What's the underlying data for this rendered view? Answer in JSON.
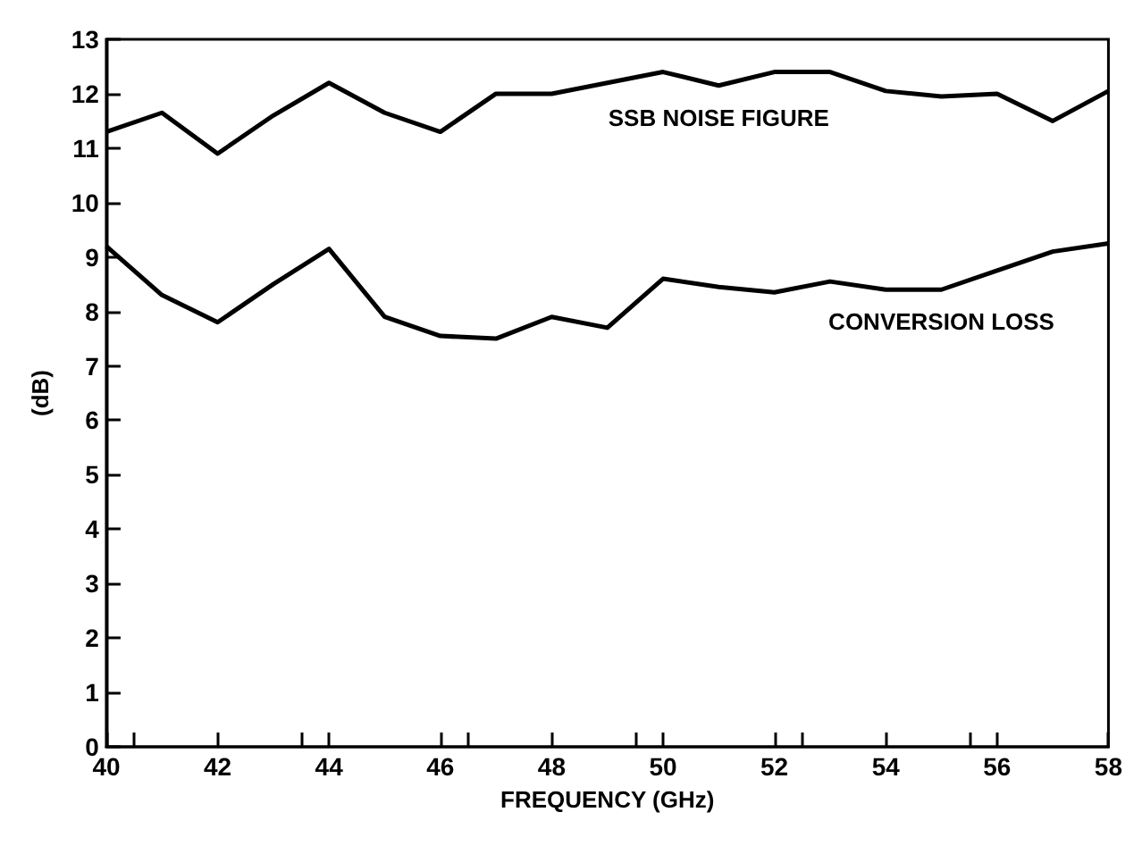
{
  "chart_data": {
    "type": "line",
    "xlabel": "FREQUENCY (GHz)",
    "ylabel": "(dB)",
    "x": [
      40,
      41,
      42,
      43,
      44,
      45,
      46,
      47,
      48,
      49,
      50,
      51,
      52,
      53,
      54,
      55,
      56,
      57,
      58
    ],
    "series": [
      {
        "name": "SSB NOISE FIGURE",
        "color": "#000000",
        "values": [
          11.3,
          11.65,
          10.9,
          11.6,
          12.2,
          11.65,
          11.3,
          12.0,
          12.0,
          12.2,
          12.4,
          12.15,
          12.4,
          12.4,
          12.05,
          11.95,
          12.0,
          11.5,
          12.05
        ]
      },
      {
        "name": "CONVERSION LOSS",
        "color": "#000000",
        "values": [
          9.2,
          8.3,
          7.8,
          8.5,
          9.15,
          7.9,
          7.55,
          7.5,
          7.9,
          7.7,
          8.6,
          8.45,
          8.35,
          8.55,
          8.4,
          8.4,
          8.75,
          9.1,
          9.25
        ]
      }
    ],
    "xlim": [
      40,
      58
    ],
    "xticks": [
      40,
      42,
      44,
      46,
      48,
      50,
      52,
      54,
      56,
      58
    ],
    "ylim": [
      0,
      13
    ],
    "yticks": [
      0,
      1,
      2,
      3,
      4,
      5,
      6,
      7,
      8,
      9,
      10,
      11,
      12,
      13
    ],
    "grid": false,
    "marker": "none",
    "line_style": "solid"
  }
}
